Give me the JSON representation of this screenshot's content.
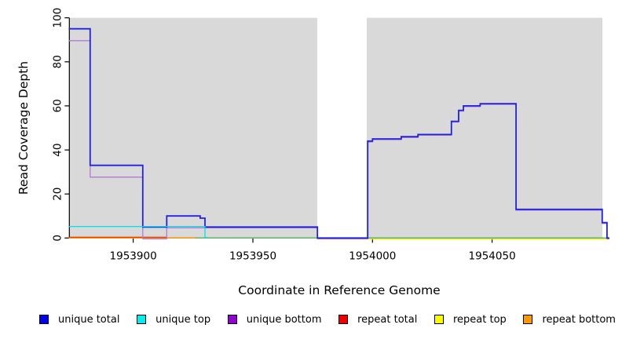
{
  "chart_data": {
    "type": "line",
    "subtype": "step-coverage-plot",
    "title": "",
    "xlabel": "Coordinate in Reference Genome",
    "ylabel": "Read Coverage Depth",
    "x_domain": [
      1953873.3,
      1954098.8
    ],
    "y_domain": [
      0,
      100
    ],
    "x_ticks": [
      1953900,
      1953950,
      1954000,
      1954050
    ],
    "x_tick_labels": [
      "1953900",
      "1953950",
      "1954000",
      "1954050"
    ],
    "y_ticks": [
      0,
      20,
      40,
      60,
      80,
      100
    ],
    "y_tick_labels": [
      "0",
      "20",
      "40",
      "60",
      "80",
      "100"
    ],
    "grid": false,
    "colors": {
      "band": "#d9d9d9",
      "background": "#ffffff",
      "axis": "#000000"
    },
    "shaded_bands": [
      [
        1953873.3,
        1953976.9
      ],
      [
        1953997.6,
        1954096.1
      ]
    ],
    "series": [
      {
        "name": "repeat-total",
        "label": "repeat total",
        "color": "#ee0000",
        "dy": -1,
        "width": 1.2,
        "points": [
          [
            1953873,
            0
          ],
          [
            1953914,
            0
          ]
        ]
      },
      {
        "name": "repeat-bottom",
        "label": "repeat bottom",
        "color": "#ff9900",
        "dy": 0,
        "width": 1.4,
        "points": [
          [
            1953873,
            0
          ],
          [
            1953926,
            0
          ]
        ]
      },
      {
        "name": "repeat-top",
        "label": "repeat top",
        "color": "#eeee00",
        "dy": 1.4,
        "width": 1.2,
        "points": [
          [
            1953998,
            0
          ],
          [
            1954099,
            0
          ]
        ]
      },
      {
        "name": "baseline-green-overlay",
        "label": "",
        "color": "#66bb66",
        "dy": 0,
        "width": 1.3,
        "points": [
          [
            1953926,
            0
          ],
          [
            1954099,
            0
          ]
        ]
      },
      {
        "name": "unique-bottom",
        "label": "unique bottom",
        "color": "#b37ad9",
        "dy": 1,
        "width": 1.3,
        "points": [
          [
            1953873,
            90
          ],
          [
            1953882,
            28
          ],
          [
            1953904,
            0
          ],
          [
            1953914,
            5
          ],
          [
            1953977,
            0
          ],
          [
            1953998,
            44
          ],
          [
            1954000,
            45
          ],
          [
            1954012,
            46
          ],
          [
            1954019,
            47
          ],
          [
            1954033,
            53
          ],
          [
            1954036,
            58
          ],
          [
            1954038,
            60
          ],
          [
            1954045,
            61
          ],
          [
            1954060,
            13
          ],
          [
            1954096,
            7
          ],
          [
            1954098,
            0
          ],
          [
            1954099,
            0
          ]
        ]
      },
      {
        "name": "unique-total",
        "label": "unique total",
        "color": "#2323dd",
        "dy": 0,
        "width": 1.8,
        "points": [
          [
            1953873,
            95
          ],
          [
            1953882,
            33
          ],
          [
            1953904,
            5
          ],
          [
            1953914,
            10
          ],
          [
            1953928,
            9
          ],
          [
            1953930,
            5
          ],
          [
            1953977,
            0
          ],
          [
            1953998,
            44
          ],
          [
            1954000,
            45
          ],
          [
            1954012,
            46
          ],
          [
            1954019,
            47
          ],
          [
            1954033,
            53
          ],
          [
            1954036,
            58
          ],
          [
            1954038,
            60
          ],
          [
            1954045,
            61
          ],
          [
            1954060,
            13
          ],
          [
            1954096,
            7
          ],
          [
            1954098,
            0
          ],
          [
            1954099,
            0
          ]
        ]
      },
      {
        "name": "unique-top",
        "label": "unique top",
        "color": "#00e0e8",
        "dy": -0.7,
        "width": 1.3,
        "points": [
          [
            1953873,
            5
          ],
          [
            1953930,
            0
          ],
          [
            1953931,
            0
          ]
        ]
      }
    ],
    "legend": [
      {
        "label": "unique total",
        "color": "#0000ee"
      },
      {
        "label": "unique top",
        "color": "#00eeee"
      },
      {
        "label": "unique bottom",
        "color": "#9400d3"
      },
      {
        "label": "repeat total",
        "color": "#ee0000"
      },
      {
        "label": "repeat top",
        "color": "#ffff00"
      },
      {
        "label": "repeat bottom",
        "color": "#ff9900"
      }
    ],
    "legend_position": "bottom"
  }
}
